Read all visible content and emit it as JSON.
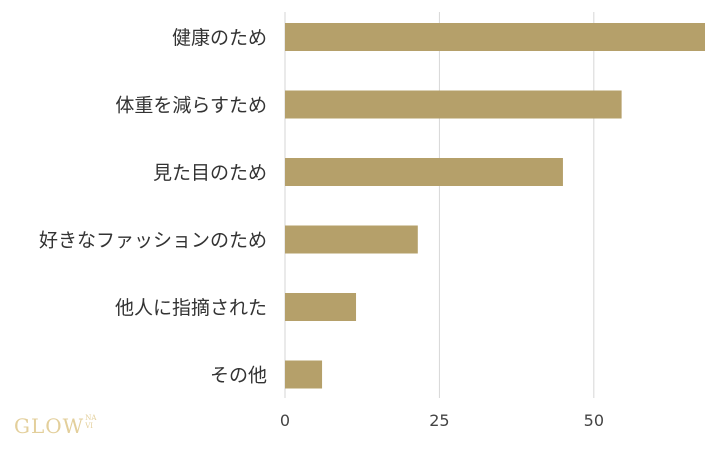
{
  "chart_data": {
    "type": "bar",
    "orientation": "horizontal",
    "categories": [
      "健康のため",
      "体重を減らすため",
      "見た目のため",
      "好きなファッションのため",
      "他人に指摘された",
      "その他"
    ],
    "values": [
      68,
      54.5,
      45,
      21.5,
      11.5,
      6
    ],
    "x_ticks": [
      0,
      25,
      50
    ],
    "xlim": [
      0,
      68
    ],
    "grid": true,
    "bar_color": "#b5a06a",
    "title": "",
    "xlabel": "",
    "ylabel": ""
  },
  "logo": {
    "main": "GLOW",
    "sub_top": "NA",
    "sub_bottom": "VI"
  }
}
